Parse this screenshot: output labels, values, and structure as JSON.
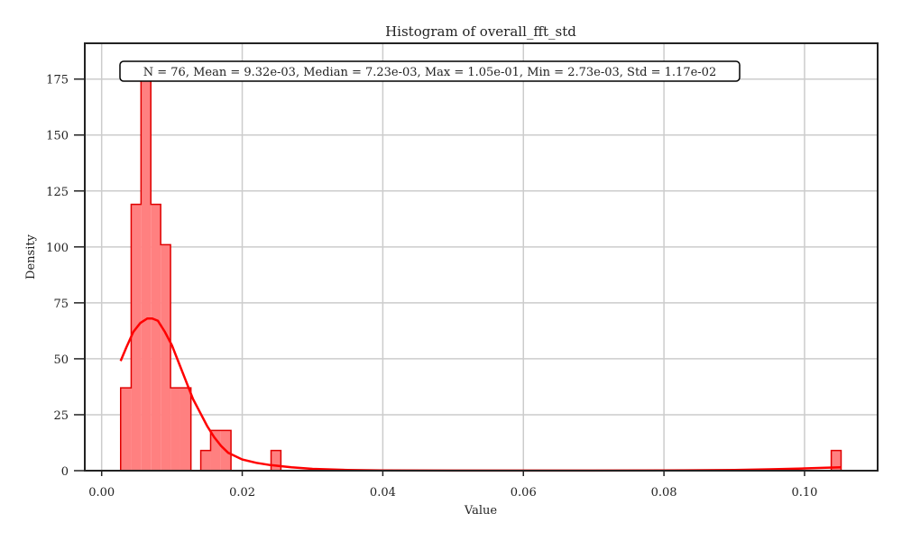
{
  "chart_data": {
    "type": "histogram",
    "title": "Histogram of overall_fft_std",
    "xlabel": "Value",
    "ylabel": "Density",
    "xlim": [
      -0.0024,
      0.1104
    ],
    "ylim": [
      0,
      191
    ],
    "x_ticks": [
      0.0,
      0.02,
      0.04,
      0.06,
      0.08,
      0.1
    ],
    "x_tick_labels": [
      "0.00",
      "0.02",
      "0.04",
      "0.06",
      "0.08",
      "0.10"
    ],
    "y_ticks": [
      0,
      25,
      50,
      75,
      100,
      125,
      150,
      175
    ],
    "y_tick_labels": [
      "0",
      "25",
      "50",
      "75",
      "100",
      "125",
      "150",
      "175"
    ],
    "grid": true,
    "stats_box": "N = 76, Mean = 9.32e-03, Median = 7.23e-03, Max = 1.05e-01, Min = 2.73e-03, Std = 1.17e-02",
    "colors": {
      "fill": "#ff8080",
      "edge": "#e00000",
      "kde": "#ff0000",
      "grid": "#cccccc",
      "axes": "#222222"
    },
    "bins": [
      {
        "x0": 0.0027,
        "x1": 0.0042,
        "density": 37
      },
      {
        "x0": 0.0042,
        "x1": 0.0056,
        "density": 119
      },
      {
        "x0": 0.0056,
        "x1": 0.007,
        "density": 176
      },
      {
        "x0": 0.007,
        "x1": 0.0084,
        "density": 119
      },
      {
        "x0": 0.0084,
        "x1": 0.0098,
        "density": 101
      },
      {
        "x0": 0.0098,
        "x1": 0.0112,
        "density": 37
      },
      {
        "x0": 0.0112,
        "x1": 0.0127,
        "density": 37
      },
      {
        "x0": 0.0127,
        "x1": 0.0141,
        "density": 0
      },
      {
        "x0": 0.0141,
        "x1": 0.0155,
        "density": 9
      },
      {
        "x0": 0.0155,
        "x1": 0.0169,
        "density": 18
      },
      {
        "x0": 0.0169,
        "x1": 0.0184,
        "density": 18
      },
      {
        "x0": 0.0184,
        "x1": 0.0241,
        "density": 0
      },
      {
        "x0": 0.0241,
        "x1": 0.0255,
        "density": 9
      },
      {
        "x0": 0.0255,
        "x1": 0.1038,
        "density": 0
      },
      {
        "x0": 0.1038,
        "x1": 0.1052,
        "density": 9
      }
    ],
    "kde": {
      "x": [
        0.0027,
        0.0035,
        0.0045,
        0.0055,
        0.0065,
        0.0072,
        0.008,
        0.009,
        0.01,
        0.011,
        0.012,
        0.013,
        0.014,
        0.015,
        0.016,
        0.017,
        0.018,
        0.02,
        0.022,
        0.024,
        0.027,
        0.03,
        0.035,
        0.04,
        0.05,
        0.06,
        0.07,
        0.08,
        0.09,
        0.095,
        0.1,
        0.103,
        0.1052
      ],
      "y": [
        49,
        55,
        62,
        66,
        68,
        68,
        67,
        62,
        56,
        48,
        40,
        32,
        26,
        20,
        15,
        11,
        8,
        5,
        3.5,
        2.5,
        1.5,
        0.8,
        0.3,
        0.1,
        0.05,
        0.05,
        0.05,
        0.1,
        0.3,
        0.6,
        1.0,
        1.3,
        1.5
      ]
    }
  }
}
